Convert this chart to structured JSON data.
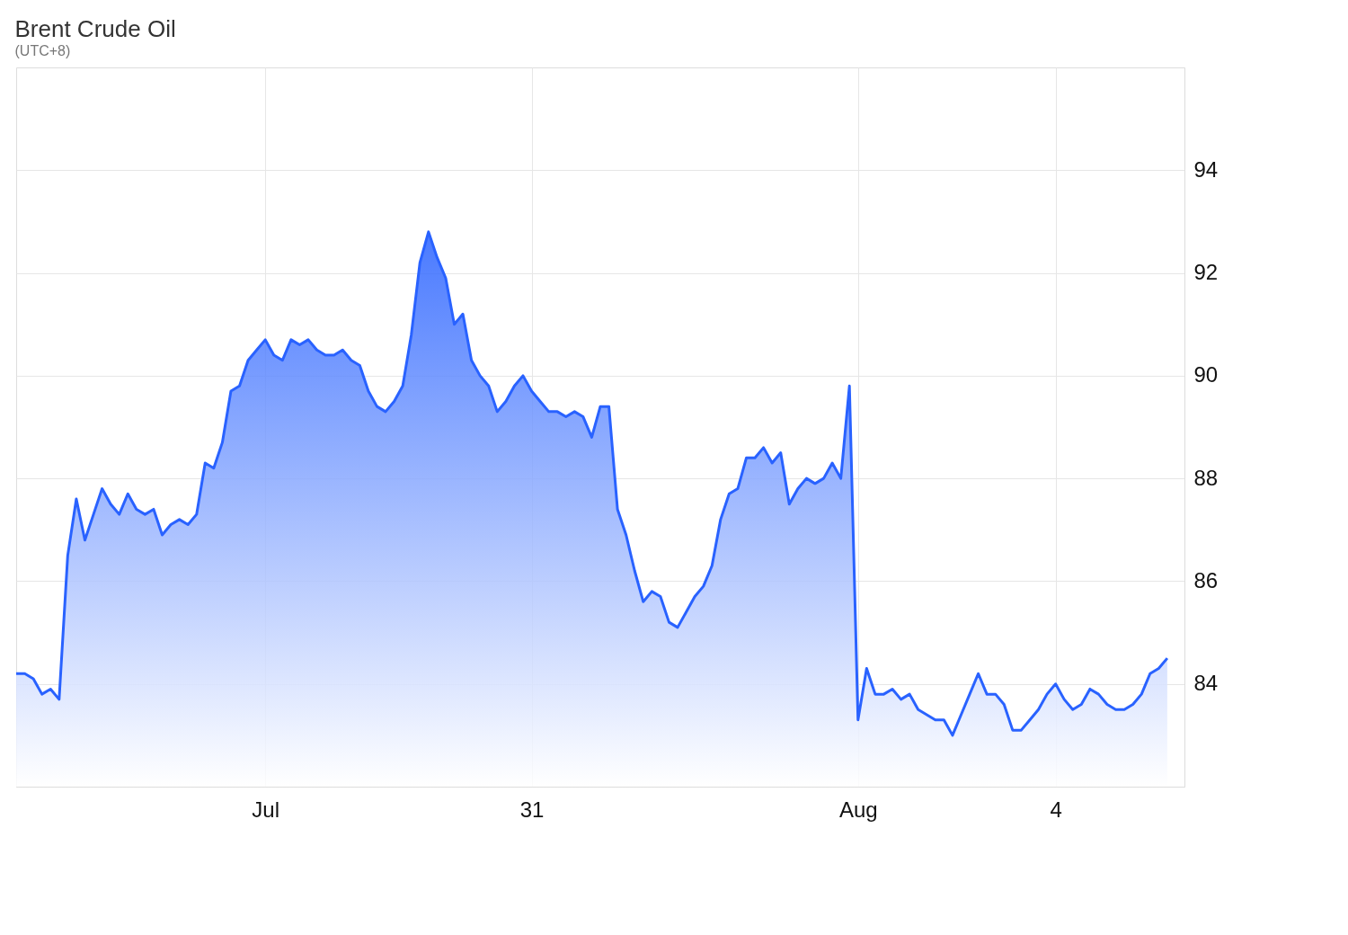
{
  "chart_data": {
    "type": "area",
    "title": "Brent Crude Oil",
    "subtitle": "(UTC+8)",
    "categories": [
      null,
      null,
      null,
      null,
      null,
      null,
      null,
      null,
      null,
      null,
      null,
      null,
      null,
      null,
      null,
      null,
      null,
      null,
      null,
      null,
      null,
      null,
      null,
      null,
      null,
      null,
      null,
      null,
      null,
      "Jul",
      null,
      null,
      null,
      null,
      null,
      null,
      null,
      null,
      null,
      null,
      null,
      null,
      null,
      null,
      null,
      null,
      null,
      null,
      null,
      null,
      null,
      null,
      null,
      null,
      null,
      null,
      null,
      null,
      null,
      null,
      "31",
      null,
      null,
      null,
      null,
      null,
      null,
      null,
      null,
      null,
      null,
      null,
      null,
      null,
      null,
      null,
      null,
      null,
      null,
      null,
      null,
      null,
      null,
      null,
      null,
      null,
      null,
      null,
      null,
      null,
      null,
      null,
      null,
      null,
      null,
      null,
      null,
      null,
      "Aug",
      null,
      null,
      null,
      null,
      null,
      null,
      null,
      null,
      null,
      null,
      null,
      null,
      null,
      null,
      null,
      null,
      null,
      null,
      null,
      null,
      null,
      null,
      "4",
      null,
      null,
      null,
      null,
      null,
      null,
      null,
      null,
      null,
      null,
      null,
      null,
      null
    ],
    "series": [
      {
        "color": "#2962ff",
        "values": [
          84.2,
          84.2,
          84.1,
          83.8,
          83.9,
          83.7,
          86.5,
          87.6,
          86.8,
          87.3,
          87.8,
          87.5,
          87.3,
          87.7,
          87.4,
          87.3,
          87.4,
          86.9,
          87.1,
          87.2,
          87.1,
          87.3,
          88.3,
          88.2,
          88.7,
          89.7,
          89.8,
          90.3,
          90.5,
          90.7,
          90.4,
          90.3,
          90.7,
          90.6,
          90.7,
          90.5,
          90.4,
          90.4,
          90.5,
          90.3,
          90.2,
          89.7,
          89.4,
          89.3,
          89.5,
          89.8,
          90.8,
          92.2,
          92.8,
          92.3,
          91.9,
          91.0,
          91.2,
          90.3,
          90.0,
          89.8,
          89.3,
          89.5,
          89.8,
          90.0,
          89.7,
          89.5,
          89.3,
          89.3,
          89.2,
          89.3,
          89.2,
          88.8,
          89.4,
          89.4,
          87.4,
          86.9,
          86.2,
          85.6,
          85.8,
          85.7,
          85.2,
          85.1,
          85.4,
          85.7,
          85.9,
          86.3,
          87.2,
          87.7,
          87.8,
          88.4,
          88.4,
          88.6,
          88.3,
          88.5,
          87.5,
          87.8,
          88.0,
          87.9,
          88.0,
          88.3,
          88.0,
          89.8,
          83.3,
          84.3,
          83.8,
          83.8,
          83.9,
          83.7,
          83.8,
          83.5,
          83.4,
          83.3,
          83.3,
          83.0,
          83.4,
          83.8,
          84.2,
          83.8,
          83.8,
          83.6,
          83.1,
          83.1,
          83.3,
          83.5,
          83.8,
          84.0,
          83.7,
          83.5,
          83.6,
          83.9,
          83.8,
          83.6,
          83.5,
          83.5,
          83.6,
          83.8,
          84.2,
          84.3,
          84.5
        ]
      }
    ],
    "ylim": [
      82,
      96
    ],
    "yticks": [
      84,
      86,
      88,
      90,
      92,
      94
    ],
    "grid": true
  }
}
